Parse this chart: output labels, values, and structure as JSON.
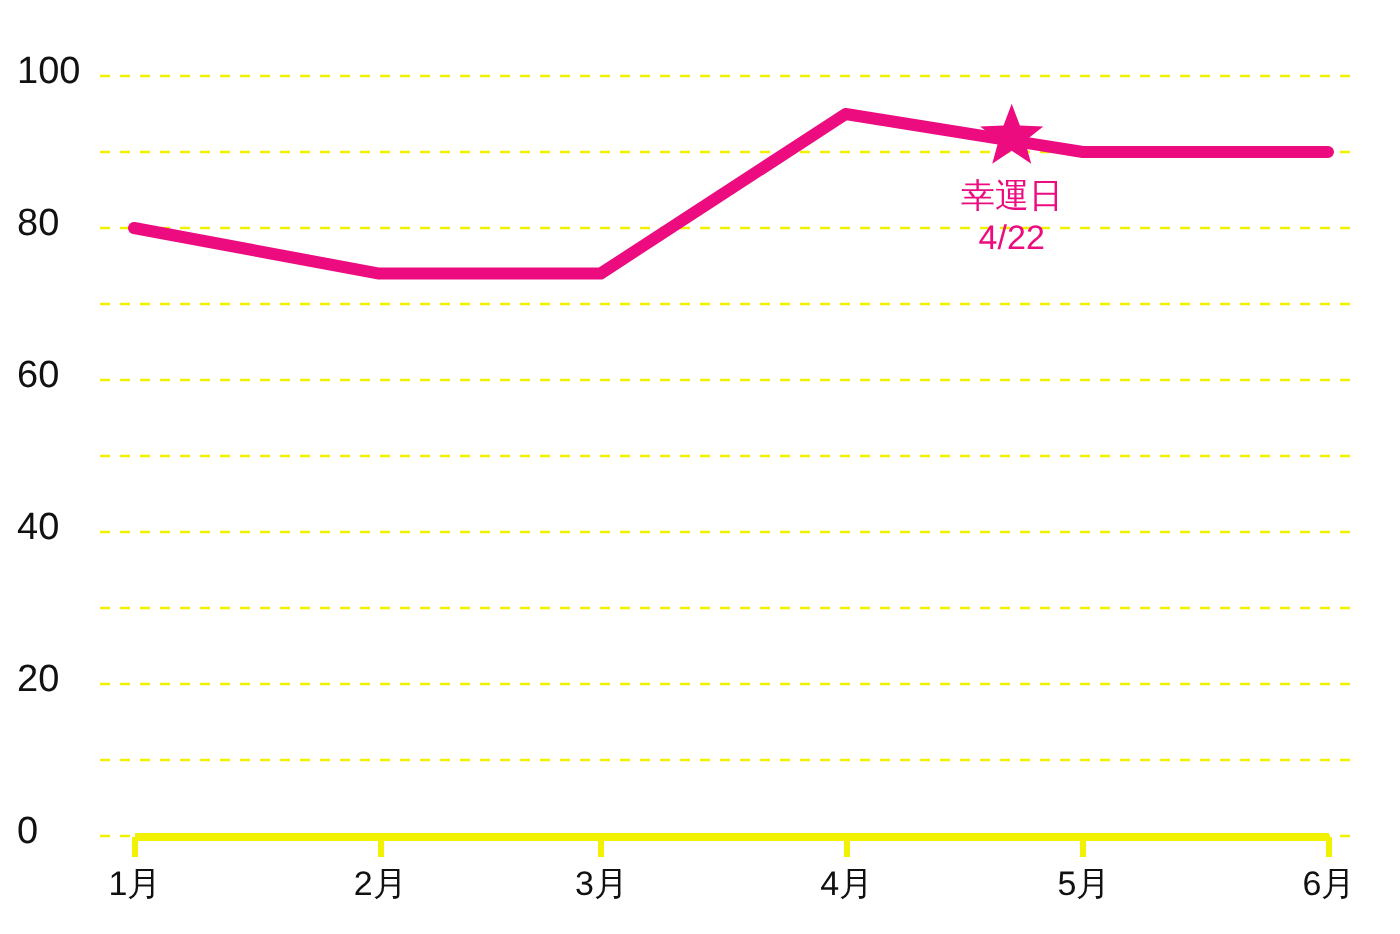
{
  "chart_data": {
    "type": "line",
    "x": [
      "--01-01",
      "--02-01",
      "--03-01",
      "--04-01",
      "--05-01",
      "--06-01"
    ],
    "series": [
      {
        "color": "#ec0c7f",
        "values": [
          80,
          74,
          74,
          95,
          90,
          90
        ]
      },
      {
        "type": "scatter",
        "marker": "star",
        "x": [
          "--04-22"
        ],
        "color": "#ec0c7f",
        "values": [
          92
        ]
      }
    ],
    "xlim": [
      "--01-01",
      "--06-01"
    ],
    "xticks": [
      {
        "value": "--01-01",
        "label": "1月"
      },
      {
        "value": "--02-01",
        "label": "2月"
      },
      {
        "value": "--03-01",
        "label": "3月"
      },
      {
        "value": "--04-01",
        "label": "4月"
      },
      {
        "value": "--05-01",
        "label": "5月"
      },
      {
        "value": "--06-01",
        "label": "6月"
      }
    ],
    "ylim": [
      0,
      100
    ],
    "yticks": [
      0,
      {
        "value": 10,
        "label": null
      },
      20,
      {
        "value": 30,
        "label": null
      },
      40,
      {
        "value": 50,
        "label": null
      },
      60,
      {
        "value": 70,
        "label": null
      },
      80,
      {
        "value": 90,
        "label": null
      },
      100
    ],
    "grid": "y",
    "marker": "none",
    "line_style": "solid",
    "annotations": [
      {
        "text": "幸運日\n4/22",
        "x": "--04-22",
        "y": 92
      }
    ]
  }
}
